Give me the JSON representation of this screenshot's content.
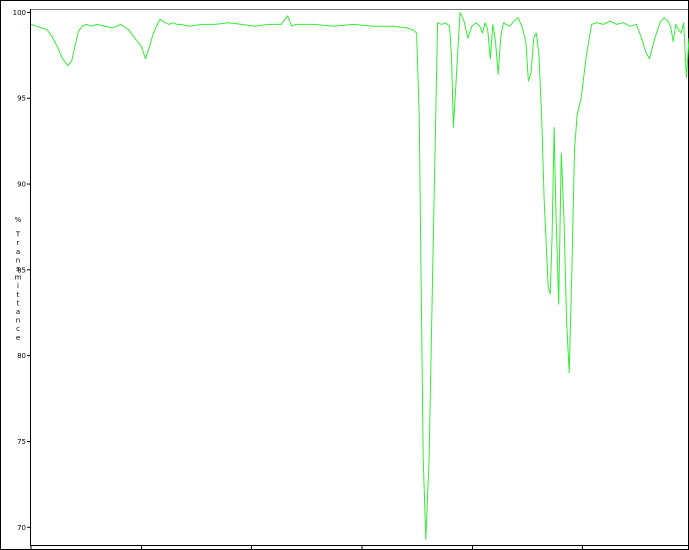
{
  "chart_data": {
    "type": "line",
    "title": "",
    "xlabel": "",
    "ylabel": "% Transmittance",
    "ylim": [
      69.2,
      100.2
    ],
    "xlim": [
      0,
      1
    ],
    "grid": false,
    "legend": "none",
    "y_ticks": [
      70,
      75,
      80,
      85,
      90,
      95,
      100
    ],
    "x_ticks": [
      0.0,
      0.168,
      0.335,
      0.503,
      0.671,
      0.838
    ],
    "series": [
      {
        "color": "#33ee33",
        "x": [
          0.0,
          0.008,
          0.016,
          0.024,
          0.032,
          0.04,
          0.048,
          0.056,
          0.062,
          0.068,
          0.072,
          0.078,
          0.084,
          0.092,
          0.1,
          0.112,
          0.124,
          0.136,
          0.148,
          0.16,
          0.168,
          0.174,
          0.18,
          0.186,
          0.192,
          0.196,
          0.2,
          0.204,
          0.21,
          0.216,
          0.222,
          0.228,
          0.24,
          0.26,
          0.28,
          0.3,
          0.32,
          0.34,
          0.36,
          0.38,
          0.39,
          0.396,
          0.402,
          0.41,
          0.43,
          0.46,
          0.49,
          0.52,
          0.55,
          0.57,
          0.58,
          0.586,
          0.59,
          0.593,
          0.596,
          0.6,
          0.605,
          0.612,
          0.618,
          0.624,
          0.63,
          0.636,
          0.639,
          0.642,
          0.646,
          0.652,
          0.658,
          0.664,
          0.67,
          0.676,
          0.682,
          0.686,
          0.69,
          0.694,
          0.698,
          0.702,
          0.706,
          0.71,
          0.714,
          0.718,
          0.722,
          0.728,
          0.734,
          0.74,
          0.746,
          0.752,
          0.756,
          0.76,
          0.764,
          0.768,
          0.772,
          0.776,
          0.78,
          0.783,
          0.786,
          0.789,
          0.792,
          0.795,
          0.798,
          0.802,
          0.806,
          0.81,
          0.814,
          0.818,
          0.822,
          0.826,
          0.83,
          0.836,
          0.844,
          0.852,
          0.86,
          0.87,
          0.88,
          0.89,
          0.9,
          0.91,
          0.92,
          0.928,
          0.934,
          0.94,
          0.948,
          0.956,
          0.962,
          0.968,
          0.972,
          0.976,
          0.98,
          0.984,
          0.988,
          0.992,
          0.996,
          1.0
        ],
        "y": [
          99.3,
          99.2,
          99.1,
          99.0,
          98.6,
          98.0,
          97.3,
          96.9,
          97.2,
          98.2,
          98.9,
          99.2,
          99.3,
          99.2,
          99.3,
          99.2,
          99.1,
          99.3,
          99.0,
          98.4,
          98.0,
          97.3,
          98.0,
          98.8,
          99.3,
          99.6,
          99.5,
          99.4,
          99.3,
          99.4,
          99.3,
          99.3,
          99.2,
          99.3,
          99.3,
          99.4,
          99.3,
          99.2,
          99.3,
          99.3,
          99.8,
          99.2,
          99.3,
          99.3,
          99.3,
          99.2,
          99.3,
          99.2,
          99.2,
          99.1,
          99.0,
          98.8,
          94.0,
          84.0,
          74.0,
          69.3,
          74.0,
          88.0,
          99.4,
          99.3,
          99.4,
          99.2,
          97.5,
          93.3,
          96.0,
          100.0,
          99.5,
          98.5,
          99.2,
          99.4,
          99.2,
          98.8,
          99.4,
          99.0,
          97.3,
          99.3,
          98.3,
          96.4,
          98.6,
          99.4,
          99.3,
          99.2,
          99.5,
          99.7,
          99.2,
          98.3,
          96.0,
          96.5,
          98.5,
          98.8,
          97.5,
          94.0,
          89.0,
          86.5,
          84.0,
          83.6,
          87.0,
          93.3,
          88.0,
          83.0,
          91.8,
          88.0,
          82.0,
          79.0,
          85.0,
          92.0,
          94.0,
          95.0,
          97.5,
          99.3,
          99.4,
          99.3,
          99.5,
          99.3,
          99.4,
          99.2,
          99.3,
          98.5,
          97.7,
          97.3,
          98.5,
          99.4,
          99.7,
          99.5,
          99.2,
          98.3,
          99.3,
          99.0,
          98.8,
          99.4,
          96.2,
          98.5
        ]
      }
    ]
  }
}
